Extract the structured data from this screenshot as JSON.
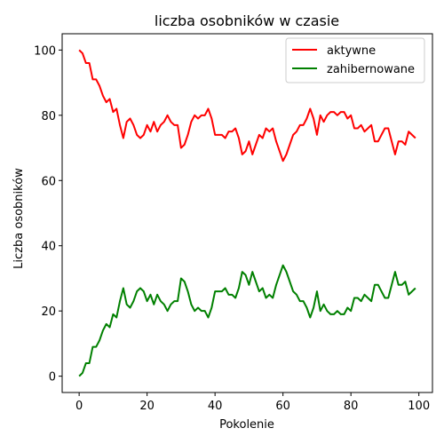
{
  "chart_data": {
    "type": "line",
    "title": "liczba osobników w czasie",
    "xlabel": "Pokolenie",
    "ylabel": "Liczba osobników",
    "xlim": [
      -5,
      104
    ],
    "ylim": [
      -5,
      105
    ],
    "xticks": [
      0,
      20,
      40,
      60,
      80,
      100
    ],
    "yticks": [
      0,
      20,
      40,
      60,
      80,
      100
    ],
    "grid": false,
    "legend_position": "top-right",
    "x": [
      0,
      1,
      2,
      3,
      4,
      5,
      6,
      7,
      8,
      9,
      10,
      11,
      12,
      13,
      14,
      15,
      16,
      17,
      18,
      19,
      20,
      21,
      22,
      23,
      24,
      25,
      26,
      27,
      28,
      29,
      30,
      31,
      32,
      33,
      34,
      35,
      36,
      37,
      38,
      39,
      40,
      41,
      42,
      43,
      44,
      45,
      46,
      47,
      48,
      49,
      50,
      51,
      52,
      53,
      54,
      55,
      56,
      57,
      58,
      59,
      60,
      61,
      62,
      63,
      64,
      65,
      66,
      67,
      68,
      69,
      70,
      71,
      72,
      73,
      74,
      75,
      76,
      77,
      78,
      79,
      80,
      81,
      82,
      83,
      84,
      85,
      86,
      87,
      88,
      89,
      90,
      91,
      92,
      93,
      94,
      95,
      96,
      97,
      98,
      99
    ],
    "series": [
      {
        "name": "aktywne",
        "color": "#ff0000",
        "values": [
          100,
          99,
          96,
          96,
          91,
          91,
          89,
          86,
          84,
          85,
          81,
          82,
          77,
          73,
          78,
          79,
          77,
          74,
          73,
          74,
          77,
          75,
          78,
          75,
          77,
          78,
          80,
          78,
          77,
          77,
          70,
          71,
          74,
          78,
          80,
          79,
          80,
          80,
          82,
          79,
          74,
          74,
          74,
          73,
          75,
          75,
          76,
          73,
          68,
          69,
          72,
          68,
          71,
          74,
          73,
          76,
          75,
          76,
          72,
          69,
          66,
          68,
          71,
          74,
          75,
          77,
          77,
          79,
          82,
          79,
          74,
          80,
          78,
          80,
          81,
          81,
          80,
          81,
          81,
          79,
          80,
          76,
          76,
          77,
          75,
          76,
          77,
          72,
          72,
          74,
          76,
          76,
          72,
          68,
          72,
          72,
          71,
          75,
          74,
          73
        ]
      },
      {
        "name": "zahibernowane",
        "color": "#008000",
        "values": [
          0,
          1,
          4,
          4,
          9,
          9,
          11,
          14,
          16,
          15,
          19,
          18,
          23,
          27,
          22,
          21,
          23,
          26,
          27,
          26,
          23,
          25,
          22,
          25,
          23,
          22,
          20,
          22,
          23,
          23,
          30,
          29,
          26,
          22,
          20,
          21,
          20,
          20,
          18,
          21,
          26,
          26,
          26,
          27,
          25,
          25,
          24,
          27,
          32,
          31,
          28,
          32,
          29,
          26,
          27,
          24,
          25,
          24,
          28,
          31,
          34,
          32,
          29,
          26,
          25,
          23,
          23,
          21,
          18,
          21,
          26,
          20,
          22,
          20,
          19,
          19,
          20,
          19,
          19,
          21,
          20,
          24,
          24,
          23,
          25,
          24,
          23,
          28,
          28,
          26,
          24,
          24,
          28,
          32,
          28,
          28,
          29,
          25,
          26,
          27
        ]
      }
    ]
  }
}
